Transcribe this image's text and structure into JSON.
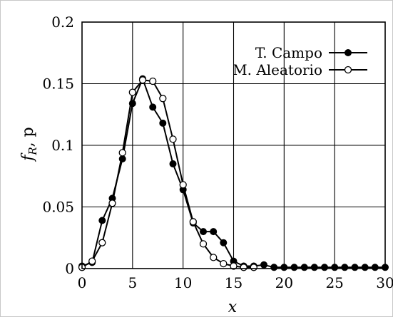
{
  "chart_data": {
    "type": "line",
    "xlabel": "x",
    "ylabel_main": "f",
    "ylabel_sub": "R",
    "ylabel_rest": ", p",
    "xlim": [
      0,
      30
    ],
    "ylim": [
      0,
      0.2
    ],
    "grid": true,
    "legend_position": "top-right",
    "x_ticks": [
      0,
      5,
      10,
      15,
      20,
      25,
      30
    ],
    "x_tick_labels": [
      "0",
      "5",
      "10",
      "15",
      "20",
      "25",
      "30"
    ],
    "y_ticks": [
      0,
      0.05,
      0.1,
      0.15,
      0.2
    ],
    "y_tick_labels": [
      "0",
      "0.05",
      "0.1",
      "0.15",
      "0.2"
    ],
    "series": [
      {
        "name": "T. Campo",
        "marker": "filled",
        "x": [
          0,
          1,
          2,
          3,
          4,
          5,
          6,
          7,
          8,
          9,
          10,
          11,
          12,
          13,
          14,
          15,
          16,
          17,
          18,
          19,
          20,
          21,
          22,
          23,
          24,
          25,
          26,
          27,
          28,
          29,
          30
        ],
        "y": [
          0.002,
          0.005,
          0.039,
          0.057,
          0.089,
          0.134,
          0.154,
          0.131,
          0.118,
          0.085,
          0.064,
          0.037,
          0.03,
          0.03,
          0.021,
          0.006,
          0.002,
          0.002,
          0.003,
          0.001,
          0.001,
          0.001,
          0.001,
          0.001,
          0.001,
          0.001,
          0.001,
          0.001,
          0.001,
          0.001,
          0.001
        ]
      },
      {
        "name": "M. Aleatorio",
        "marker": "open",
        "x": [
          0,
          1,
          2,
          3,
          4,
          5,
          6,
          7,
          8,
          9,
          10,
          11,
          12,
          13,
          14,
          15,
          16,
          17
        ],
        "y": [
          0.001,
          0.006,
          0.021,
          0.053,
          0.094,
          0.143,
          0.153,
          0.152,
          0.138,
          0.105,
          0.068,
          0.038,
          0.02,
          0.009,
          0.004,
          0.002,
          0.001,
          0.001
        ]
      }
    ]
  },
  "colors": {
    "line": "#000000",
    "grid": "#000000",
    "background": "#ffffff"
  }
}
